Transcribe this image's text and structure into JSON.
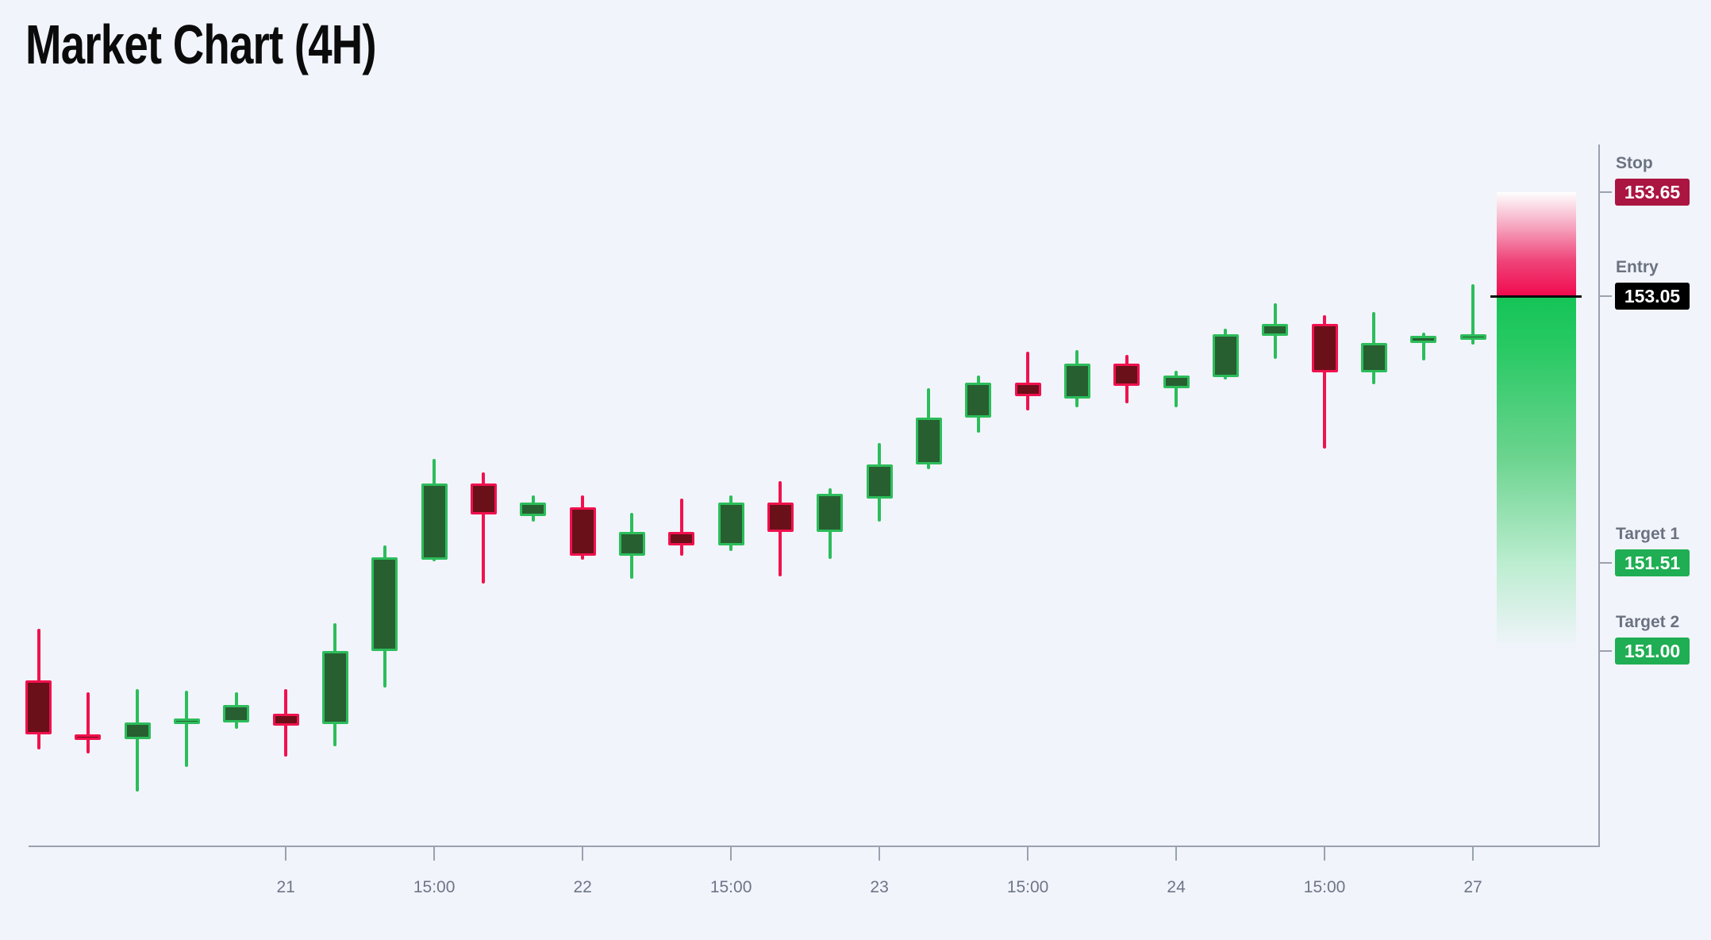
{
  "title": "Market Chart (4H)",
  "chart_data": {
    "type": "candlestick",
    "timeframe": "4H",
    "title": "Market Chart (4H)",
    "grid": false,
    "ylim": [
      149.85,
      153.95
    ],
    "x_ticks": [
      {
        "label": "21",
        "candle_index": 5
      },
      {
        "label": "15:00",
        "candle_index": 8
      },
      {
        "label": "22",
        "candle_index": 11
      },
      {
        "label": "15:00",
        "candle_index": 14
      },
      {
        "label": "23",
        "candle_index": 17
      },
      {
        "label": "15:00",
        "candle_index": 20
      },
      {
        "label": "24",
        "candle_index": 23
      },
      {
        "label": "15:00",
        "candle_index": 26
      },
      {
        "label": "27",
        "candle_index": 29
      }
    ],
    "candles": [
      {
        "o": 150.83,
        "h": 151.13,
        "l": 150.43,
        "c": 150.52
      },
      {
        "o": 150.52,
        "h": 150.76,
        "l": 150.41,
        "c": 150.49
      },
      {
        "o": 150.49,
        "h": 150.78,
        "l": 150.19,
        "c": 150.59
      },
      {
        "o": 150.58,
        "h": 150.77,
        "l": 150.33,
        "c": 150.61
      },
      {
        "o": 150.59,
        "h": 150.76,
        "l": 150.55,
        "c": 150.69
      },
      {
        "o": 150.64,
        "h": 150.78,
        "l": 150.39,
        "c": 150.57
      },
      {
        "o": 150.58,
        "h": 151.16,
        "l": 150.45,
        "c": 151.0
      },
      {
        "o": 151.0,
        "h": 151.61,
        "l": 150.79,
        "c": 151.54
      },
      {
        "o": 151.53,
        "h": 152.11,
        "l": 151.52,
        "c": 151.97
      },
      {
        "o": 151.97,
        "h": 152.03,
        "l": 151.39,
        "c": 151.79
      },
      {
        "o": 151.78,
        "h": 151.9,
        "l": 151.75,
        "c": 151.86
      },
      {
        "o": 151.83,
        "h": 151.9,
        "l": 151.53,
        "c": 151.55
      },
      {
        "o": 151.55,
        "h": 151.8,
        "l": 151.42,
        "c": 151.69
      },
      {
        "o": 151.69,
        "h": 151.88,
        "l": 151.55,
        "c": 151.61
      },
      {
        "o": 151.61,
        "h": 151.9,
        "l": 151.58,
        "c": 151.86
      },
      {
        "o": 151.86,
        "h": 151.98,
        "l": 151.43,
        "c": 151.69
      },
      {
        "o": 151.69,
        "h": 151.94,
        "l": 151.53,
        "c": 151.91
      },
      {
        "o": 151.88,
        "h": 152.2,
        "l": 151.75,
        "c": 152.08
      },
      {
        "o": 152.08,
        "h": 152.52,
        "l": 152.05,
        "c": 152.35
      },
      {
        "o": 152.35,
        "h": 152.59,
        "l": 152.26,
        "c": 152.55
      },
      {
        "o": 152.55,
        "h": 152.73,
        "l": 152.39,
        "c": 152.47
      },
      {
        "o": 152.46,
        "h": 152.74,
        "l": 152.41,
        "c": 152.66
      },
      {
        "o": 152.66,
        "h": 152.71,
        "l": 152.43,
        "c": 152.53
      },
      {
        "o": 152.52,
        "h": 152.62,
        "l": 152.41,
        "c": 152.59
      },
      {
        "o": 152.58,
        "h": 152.86,
        "l": 152.57,
        "c": 152.83
      },
      {
        "o": 152.82,
        "h": 153.01,
        "l": 152.69,
        "c": 152.89
      },
      {
        "o": 152.89,
        "h": 152.94,
        "l": 152.17,
        "c": 152.61
      },
      {
        "o": 152.61,
        "h": 152.96,
        "l": 152.54,
        "c": 152.78
      },
      {
        "o": 152.78,
        "h": 152.84,
        "l": 152.68,
        "c": 152.82
      },
      {
        "o": 152.8,
        "h": 153.12,
        "l": 152.77,
        "c": 152.83
      }
    ],
    "levels": {
      "stop": {
        "label": "Stop",
        "display": "153.65",
        "price": 153.65,
        "badge_color": "#ab1541"
      },
      "entry": {
        "label": "Entry",
        "display": "153.05",
        "price": 153.05,
        "badge_color": "#000000"
      },
      "target1": {
        "label": "Target 1",
        "display": "151.51",
        "price": 151.51,
        "badge_color": "#1fae53"
      },
      "target2": {
        "label": "Target 2",
        "display": "151.00",
        "price": 151.0,
        "badge_color": "#1fae53"
      }
    },
    "colors": {
      "background": "#f1f4fb",
      "axis": "#9aa2ae",
      "bull_stroke": "#2cbd5b",
      "bull_fill": "#275f31",
      "bear_stroke": "#f1114e",
      "bear_fill": "#6a1019",
      "risk_zone": "#f00a4e",
      "reward_zone": "#14c457",
      "entry_line": "#0c0c0c"
    }
  }
}
